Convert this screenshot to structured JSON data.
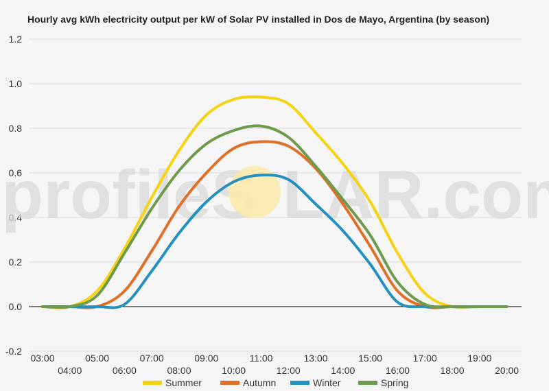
{
  "chart_data": {
    "type": "line",
    "title": "Hourly avg kWh electricity output per kW of Solar PV installed in Dos de Mayo, Argentina (by season)",
    "watermark": {
      "left": "profileS",
      "right": "LAR.com"
    },
    "x": [
      "03:00",
      "04:00",
      "05:00",
      "06:00",
      "07:00",
      "08:00",
      "09:00",
      "10:00",
      "11:00",
      "12:00",
      "13:00",
      "14:00",
      "15:00",
      "16:00",
      "17:00",
      "18:00",
      "19:00",
      "20:00"
    ],
    "xlabel": "",
    "ylabel": "",
    "ylim": [
      -0.2,
      1.2
    ],
    "yticks": [
      "-0.2",
      "0.0",
      "0.2",
      "0.4",
      "0.6",
      "0.8",
      "1.0",
      "1.2"
    ],
    "grid": true,
    "legend_position": "bottom",
    "series": [
      {
        "name": "Summer",
        "color": "#f5d312",
        "values": [
          0.0,
          0.0,
          0.07,
          0.26,
          0.49,
          0.7,
          0.86,
          0.93,
          0.94,
          0.91,
          0.78,
          0.64,
          0.47,
          0.24,
          0.06,
          0.0,
          0.0,
          0.0
        ]
      },
      {
        "name": "Autumn",
        "color": "#e07028",
        "values": [
          0.0,
          0.0,
          0.0,
          0.07,
          0.25,
          0.45,
          0.6,
          0.71,
          0.74,
          0.72,
          0.62,
          0.46,
          0.27,
          0.07,
          0.0,
          0.0,
          0.0,
          0.0
        ]
      },
      {
        "name": "Winter",
        "color": "#2490bf",
        "values": [
          0.0,
          0.0,
          0.0,
          0.01,
          0.16,
          0.33,
          0.47,
          0.56,
          0.59,
          0.57,
          0.46,
          0.34,
          0.19,
          0.02,
          0.0,
          0.0,
          0.0,
          0.0
        ]
      },
      {
        "name": "Spring",
        "color": "#6e9a4e",
        "values": [
          0.0,
          0.0,
          0.05,
          0.24,
          0.44,
          0.61,
          0.73,
          0.79,
          0.81,
          0.76,
          0.63,
          0.48,
          0.32,
          0.11,
          0.01,
          0.0,
          0.0,
          0.0
        ]
      }
    ]
  }
}
